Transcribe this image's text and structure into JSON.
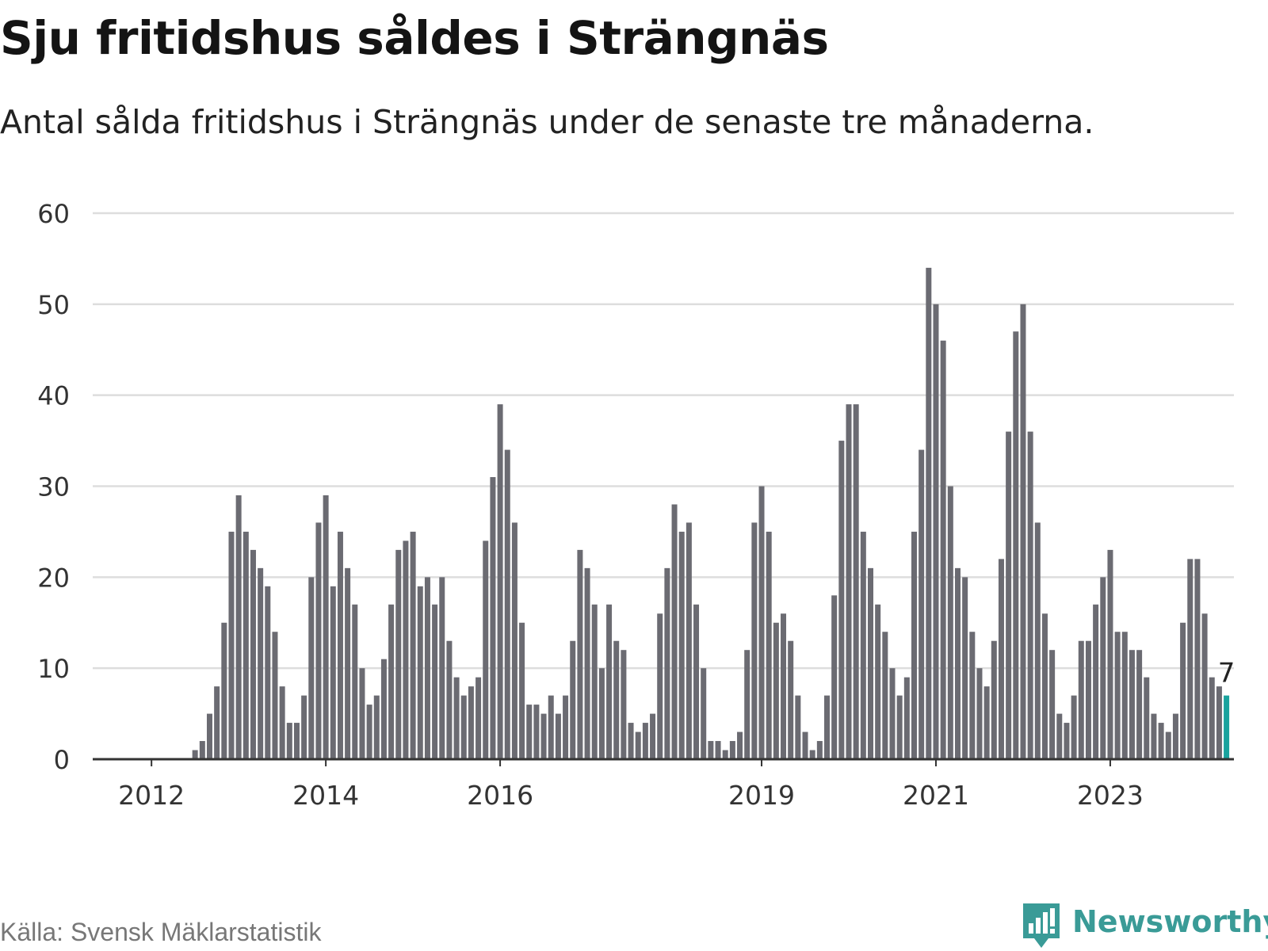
{
  "title": "Sju fritidshus såldes i Strängnäs",
  "subtitle": "Antal sålda fritidshus i Strängnäs under de senaste tre månaderna.",
  "source": "Källa: Svensk Mäklarstatistik",
  "brand": {
    "name": "Newsworthy",
    "color": "#3a9b97",
    "icon": "bar-chart-speech-bubble-icon"
  },
  "colors": {
    "bar": "#6b6b72",
    "highlight": "#1aa39e",
    "grid": "#dddddd",
    "axis": "#333333"
  },
  "chart_data": {
    "type": "bar",
    "title": "Sju fritidshus såldes i Strängnäs",
    "subtitle": "Antal sålda fritidshus i Strängnäs under de senaste tre månaderna.",
    "xlabel": "",
    "ylabel": "",
    "ylim": [
      0,
      60
    ],
    "yticks": [
      0,
      10,
      20,
      30,
      40,
      50,
      60
    ],
    "grid": true,
    "xtick_labels": [
      {
        "label": "2012",
        "index": 1
      },
      {
        "label": "2014",
        "index": 25
      },
      {
        "label": "2016",
        "index": 49
      },
      {
        "label": "2019",
        "index": 85
      },
      {
        "label": "2021",
        "index": 109
      },
      {
        "label": "2023",
        "index": 133
      }
    ],
    "values": [
      0,
      0,
      0,
      0,
      0,
      0,
      0,
      1,
      2,
      5,
      8,
      15,
      25,
      29,
      25,
      23,
      21,
      19,
      14,
      8,
      4,
      4,
      7,
      20,
      26,
      29,
      19,
      25,
      21,
      17,
      10,
      6,
      7,
      11,
      17,
      23,
      24,
      25,
      19,
      20,
      17,
      20,
      13,
      9,
      7,
      8,
      9,
      24,
      31,
      39,
      34,
      26,
      15,
      6,
      6,
      5,
      7,
      5,
      7,
      13,
      23,
      21,
      17,
      10,
      17,
      13,
      12,
      4,
      3,
      4,
      5,
      16,
      21,
      28,
      25,
      26,
      17,
      10,
      2,
      2,
      1,
      2,
      3,
      12,
      26,
      30,
      25,
      15,
      16,
      13,
      7,
      3,
      1,
      2,
      7,
      18,
      35,
      39,
      39,
      25,
      21,
      17,
      14,
      10,
      7,
      9,
      25,
      34,
      54,
      50,
      46,
      30,
      21,
      20,
      14,
      10,
      8,
      13,
      22,
      36,
      47,
      50,
      36,
      26,
      16,
      12,
      5,
      4,
      7,
      13,
      13,
      17,
      20,
      23,
      14,
      14,
      12,
      12,
      9,
      5,
      4,
      3,
      5,
      15,
      22,
      22,
      16,
      9,
      8,
      7
    ],
    "highlight": {
      "index": 149,
      "value": 7,
      "label": "7"
    }
  }
}
